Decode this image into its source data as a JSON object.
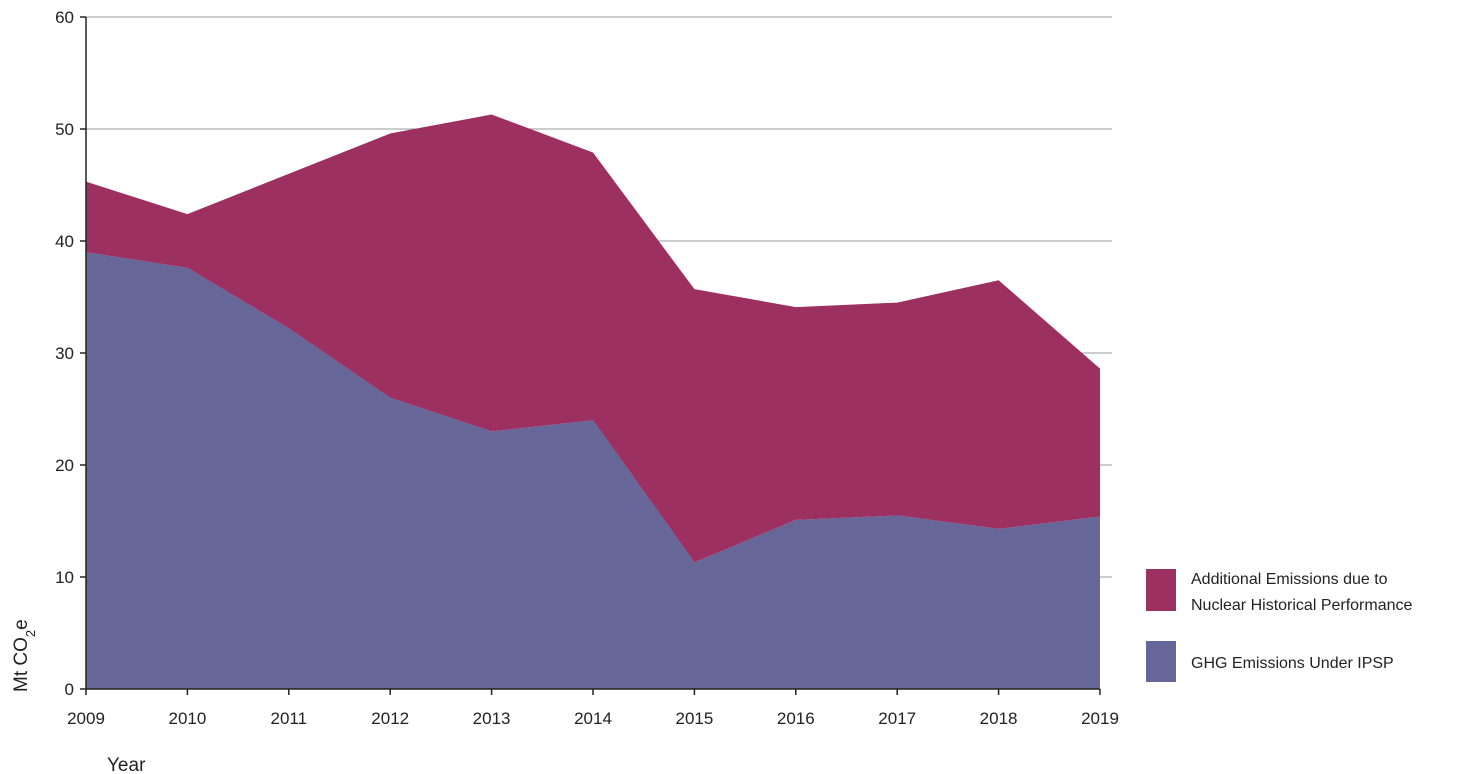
{
  "chart_data": {
    "type": "area",
    "stacked": true,
    "x": [
      "2009",
      "2010",
      "2011",
      "2012",
      "2013",
      "2014",
      "2015",
      "2016",
      "2017",
      "2018",
      "2019"
    ],
    "series": [
      {
        "name": "GHG Emissions Under IPSP",
        "color": "#666699",
        "values": [
          39,
          37.6,
          32.2,
          26,
          23,
          24,
          11.3,
          15.1,
          15.5,
          14.3,
          15.4
        ]
      },
      {
        "name": "Additional Emissions due to Nuclear Historical Performance",
        "color": "#9c3060",
        "values": [
          6.3,
          4.8,
          13.8,
          23.6,
          28.3,
          23.9,
          24.4,
          19,
          19,
          22.2,
          13.2
        ]
      }
    ],
    "ylim": [
      0,
      60
    ],
    "yticks": [
      0,
      10,
      20,
      30,
      40,
      50,
      60
    ],
    "xlabel": "Year",
    "ylabel_main": "Mt CO",
    "ylabel_sub": "2",
    "ylabel_tail": "e",
    "grid": true,
    "legend_position": "bottom-right",
    "legend_lines": [
      [
        "Additional Emissions due to",
        "Nuclear Historical Performance"
      ],
      [
        "GHG Emissions Under IPSP"
      ]
    ]
  }
}
